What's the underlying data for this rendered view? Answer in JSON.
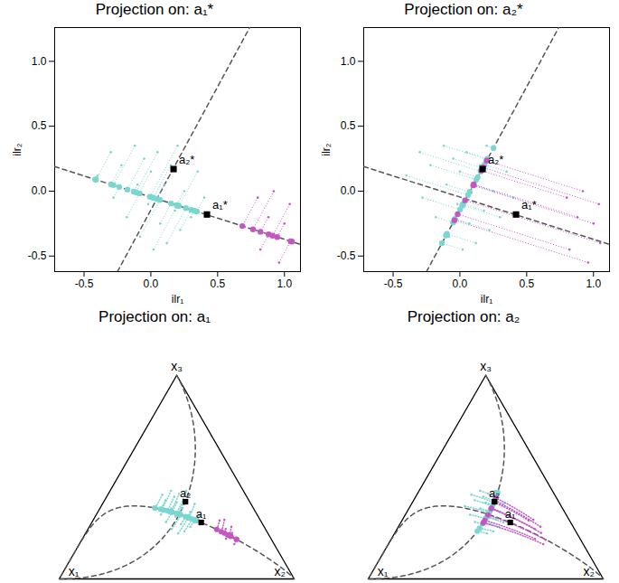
{
  "chart_data": {
    "type": "multi_panel",
    "groups": [
      {
        "color": "#7ad6cf",
        "x": [
          -0.4,
          -0.3,
          -0.28,
          -0.22,
          -0.18,
          -0.12,
          -0.1,
          -0.08,
          -0.05,
          -0.02,
          0.0,
          0.02,
          0.05,
          0.07,
          0.1,
          0.12,
          0.15,
          0.18,
          0.2,
          0.22,
          0.25,
          0.3,
          0.35,
          0.4
        ],
        "y": [
          0.12,
          0.3,
          -0.05,
          0.2,
          -0.2,
          0.35,
          0.05,
          -0.35,
          0.25,
          -0.1,
          0.15,
          -0.45,
          0.3,
          -0.25,
          0.05,
          -0.4,
          0.2,
          -0.15,
          0.35,
          -0.3,
          0.0,
          -0.2,
          0.15,
          -0.05
        ],
        "projections": [
          {
            "x": [
              -0.416,
              -0.411,
              -0.237,
              -0.298,
              -0.084,
              -0.28,
              -0.128,
              0.069,
              -0.175,
              0.008,
              -0.088,
              0.199,
              -0.112,
              0.152,
              0.043,
              0.262,
              0.018,
              0.201,
              -0.007,
              0.302,
              0.193,
              0.326,
              0.211,
              0.344
            ],
            "y": [
              0.09,
              0.089,
              0.032,
              0.052,
              -0.018,
              0.046,
              -0.004,
              -0.068,
              0.012,
              -0.048,
              -0.017,
              -0.11,
              -0.009,
              -0.095,
              -0.059,
              -0.131,
              -0.051,
              -0.111,
              -0.043,
              -0.144,
              -0.108,
              -0.151,
              -0.114,
              -0.157
            ]
          },
          {
            "x": [
              0.061,
              0.156,
              0.002,
              0.123,
              -0.051,
              0.205,
              0.073,
              -0.104,
              0.17,
              0.018,
              0.133,
              -0.134,
              0.207,
              -0.037,
              0.103,
              -0.097,
              0.177,
              0.024,
              0.252,
              -0.037,
              0.102,
              0.019,
              0.184,
              0.102
            ],
            "y": [
              -0.03,
              0.151,
              -0.142,
              0.088,
              -0.242,
              0.244,
              -0.006,
              -0.342,
              0.178,
              -0.112,
              0.107,
              -0.4,
              0.249,
              -0.215,
              0.049,
              -0.329,
              0.191,
              -0.099,
              0.333,
              -0.216,
              0.048,
              -0.109,
              0.204,
              0.047
            ]
          }
        ]
      },
      {
        "color": "#c655c4",
        "x": [
          0.8,
          0.82,
          0.88,
          0.92,
          0.96,
          1.0,
          1.04,
          1.05
        ],
        "y": [
          -0.05,
          -0.45,
          -0.2,
          0.0,
          -0.55,
          -0.25,
          -0.1,
          -0.4
        ],
        "projections": [
          {
            "x": [
              0.685,
              0.882,
              0.821,
              0.765,
              1.046,
              0.946,
              0.912,
              1.056
            ],
            "y": [
              -0.269,
              -0.333,
              -0.313,
              -0.295,
              -0.386,
              -0.354,
              -0.343,
              -0.389
            ]
          },
          {
            "x": [
              0.16,
              -0.017,
              0.104,
              0.2,
              -0.041,
              0.1,
              0.173,
              0.039
            ],
            "y": [
              0.159,
              -0.177,
              0.053,
              0.235,
              -0.224,
              0.044,
              0.183,
              -0.071
            ]
          }
        ]
      }
    ],
    "reference_lines": [
      {
        "x": [
          -0.72,
          1.12
        ],
        "y": [
          0.189,
          -0.41
        ]
      },
      {
        "x": [
          -0.25,
          0.74
        ],
        "y": [
          -0.62,
          1.26
        ]
      }
    ],
    "markers": [
      {
        "x": 0.42,
        "y": -0.18
      },
      {
        "x": 0.17,
        "y": 0.17
      }
    ],
    "panels": [
      {
        "type": "scatter",
        "title": "Projection on:  a₁*",
        "projection": 0,
        "marker_labels": [
          "a₁*",
          "a₂*"
        ],
        "x_label": "ilr₁",
        "y_label": "ilr₂",
        "xlim": [
          -0.72,
          1.12
        ],
        "ylim": [
          -0.62,
          1.26
        ],
        "xticks": [
          -0.5,
          {
            "value": 0,
            "label": "0.0"
          },
          0.5,
          {
            "value": 1,
            "label": "1.0"
          }
        ],
        "yticks": [
          -0.5,
          {
            "value": 0,
            "label": "0.0"
          },
          0.5,
          {
            "value": 1,
            "label": "1.0"
          }
        ]
      },
      {
        "type": "scatter",
        "title": "Projection on:  a₂*",
        "projection": 1,
        "marker_labels": [
          "a₁*",
          "a₂*"
        ],
        "x_label": "ilr₁",
        "y_label": "ilr₂",
        "xlim": [
          -0.72,
          1.12
        ],
        "ylim": [
          -0.62,
          1.26
        ],
        "xticks": [
          -0.5,
          {
            "value": 0,
            "label": "0.0"
          },
          0.5,
          {
            "value": 1,
            "label": "1.0"
          }
        ],
        "yticks": [
          -0.5,
          {
            "value": 0,
            "label": "0.0"
          },
          0.5,
          {
            "value": 1,
            "label": "1.0"
          }
        ]
      },
      {
        "type": "ternary",
        "title": "Projection on:  a₁",
        "projection": 0,
        "marker_labels": [
          "a₁",
          "a₂"
        ],
        "vertex_labels": [
          "x₁",
          "x₂",
          "x₃"
        ]
      },
      {
        "type": "ternary",
        "title": "Projection on:  a₂",
        "projection": 1,
        "marker_labels": [
          "a₁",
          "a₂"
        ],
        "vertex_labels": [
          "x₁",
          "x₂",
          "x₃"
        ]
      }
    ]
  }
}
